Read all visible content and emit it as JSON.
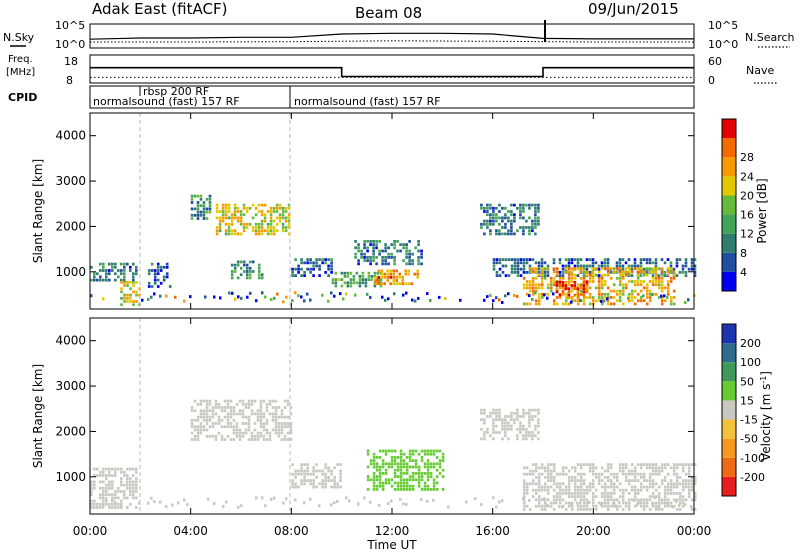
{
  "header": {
    "station": "Adak East (fitACF)",
    "beam": "Beam 08",
    "date": "09/Jun/2015"
  },
  "noise_panel": {
    "left_label": "N.Sky",
    "right_label": "N.Search",
    "left_ticks": [
      "10^5",
      "10^0"
    ],
    "right_ticks": [
      "10^5",
      "10^0"
    ]
  },
  "freq_panel": {
    "left_label_1": "Freq.",
    "left_label_2": "[MHz]",
    "left_ticks": [
      "18",
      "8"
    ],
    "right_label": "Nave",
    "right_ticks": [
      "60",
      "0"
    ]
  },
  "cpid_panel": {
    "label": "CPID",
    "segments": [
      {
        "start": "00:00",
        "end": "08:00",
        "name": "normalsound (fast) 157 RF"
      },
      {
        "start": "01:55",
        "end": "08:00",
        "name": "rbsp 200 RF"
      },
      {
        "start": "08:00",
        "end": "24:00",
        "name": "normalsound (fast) 157 RF"
      }
    ]
  },
  "power_panel": {
    "ylabel": "Slant Range [km]",
    "yticks": [
      "1000",
      "2000",
      "3000",
      "4000"
    ],
    "cbar_label": "Power [dB]",
    "cbar_ticks": [
      "4",
      "8",
      "12",
      "16",
      "20",
      "24",
      "28"
    ],
    "colors": [
      "#0000ee",
      "#1e4fa0",
      "#2f7d6f",
      "#44a35a",
      "#66bb3a",
      "#e2c800",
      "#f79a00",
      "#f26a00",
      "#e20000"
    ]
  },
  "velocity_panel": {
    "ylabel": "Slant Range [km]",
    "yticks": [
      "1000",
      "2000",
      "3000",
      "4000"
    ],
    "cbar_label": "Velocity [m s^-1]",
    "cbar_ticks": [
      "200",
      "100",
      "50",
      "15",
      "-15",
      "-50",
      "-100",
      "-200"
    ],
    "colors": [
      "#1f33b0",
      "#2f6d8e",
      "#3f9a5a",
      "#66cc33",
      "#c8c8c0",
      "#f3c13a",
      "#f59a1e",
      "#f06a14",
      "#e61e1e"
    ]
  },
  "xaxis": {
    "label": "Time UT",
    "ticks": [
      "00:00",
      "04:00",
      "08:00",
      "12:00",
      "16:00",
      "20:00",
      "00:00"
    ]
  },
  "chart_data": [
    {
      "type": "line",
      "title": "N.Sky / N.Search",
      "x_range_hours": [
        0,
        24
      ],
      "y_scale": "log",
      "ylim": [
        1,
        100000
      ],
      "series": [
        {
          "name": "N.Sky",
          "x": [
            0,
            2,
            4,
            6,
            8,
            10,
            12,
            14,
            16,
            18,
            20,
            22,
            24
          ],
          "y": [
            50,
            100,
            100,
            150,
            150,
            1000,
            1500,
            1500,
            1000,
            80,
            60,
            60,
            60
          ]
        },
        {
          "name": "N.Search",
          "x": [
            0,
            4,
            8,
            12,
            16,
            20,
            24
          ],
          "y": [
            10,
            10,
            12,
            20,
            15,
            10,
            10
          ]
        }
      ]
    },
    {
      "type": "line",
      "title": "Freq. / Nave",
      "x_range_hours": [
        0,
        24
      ],
      "series": [
        {
          "name": "Freq.",
          "x": [
            0,
            10,
            10,
            18,
            18,
            24
          ],
          "y": [
            14.5,
            14.5,
            10.5,
            10.5,
            14.5,
            14.5
          ]
        },
        {
          "name": "Nave",
          "x": [
            0,
            24
          ],
          "y": [
            9,
            9
          ]
        }
      ]
    },
    {
      "type": "heatmap",
      "title": "Power",
      "x_range_hours": [
        0,
        24
      ],
      "ylim": [
        180,
        4500
      ],
      "units": "dB",
      "clim": [
        0,
        30
      ],
      "regions": [
        {
          "t0": 0.0,
          "t1": 1.9,
          "r0": 800,
          "r1": 1200,
          "value": 8
        },
        {
          "t0": 1.2,
          "t1": 2.0,
          "r0": 250,
          "r1": 800,
          "value": 18
        },
        {
          "t0": 2.3,
          "t1": 3.2,
          "r0": 700,
          "r1": 1200,
          "value": 6
        },
        {
          "t0": 4.0,
          "t1": 4.8,
          "r0": 2200,
          "r1": 2700,
          "value": 10
        },
        {
          "t0": 5.0,
          "t1": 7.9,
          "r0": 1800,
          "r1": 2500,
          "value": 18
        },
        {
          "t0": 5.6,
          "t1": 6.8,
          "r0": 850,
          "r1": 1250,
          "value": 10
        },
        {
          "t0": 8.0,
          "t1": 9.6,
          "r0": 900,
          "r1": 1300,
          "value": 6
        },
        {
          "t0": 9.6,
          "t1": 11.6,
          "r0": 700,
          "r1": 1000,
          "value": 12
        },
        {
          "t0": 10.5,
          "t1": 13.2,
          "r0": 1200,
          "r1": 1700,
          "value": 8
        },
        {
          "t0": 11.3,
          "t1": 13.0,
          "r0": 750,
          "r1": 1050,
          "value": 22
        },
        {
          "t0": 15.5,
          "t1": 17.8,
          "r0": 1800,
          "r1": 2500,
          "value": 8
        },
        {
          "t0": 16.0,
          "t1": 24.0,
          "r0": 900,
          "r1": 1300,
          "value": 6
        },
        {
          "t0": 17.2,
          "t1": 23.2,
          "r0": 300,
          "r1": 1100,
          "value": 20
        },
        {
          "t0": 18.5,
          "t1": 19.7,
          "r0": 450,
          "r1": 800,
          "value": 27
        }
      ]
    },
    {
      "type": "heatmap",
      "title": "Velocity",
      "x_range_hours": [
        0,
        24
      ],
      "ylim": [
        180,
        4500
      ],
      "units": "m/s",
      "clim": [
        -200,
        200
      ],
      "regions": [
        {
          "t0": 0.0,
          "t1": 1.9,
          "r0": 300,
          "r1": 1200,
          "value": 0
        },
        {
          "t0": 4.0,
          "t1": 8.0,
          "r0": 1800,
          "r1": 2700,
          "value": 0
        },
        {
          "t0": 8.0,
          "t1": 10.0,
          "r0": 800,
          "r1": 1300,
          "value": 0
        },
        {
          "t0": 11.0,
          "t1": 14.0,
          "r0": 700,
          "r1": 1600,
          "value": 30
        },
        {
          "t0": 15.5,
          "t1": 17.8,
          "r0": 1800,
          "r1": 2500,
          "value": 0
        },
        {
          "t0": 17.2,
          "t1": 24.0,
          "r0": 300,
          "r1": 1300,
          "value": 0
        }
      ]
    }
  ]
}
